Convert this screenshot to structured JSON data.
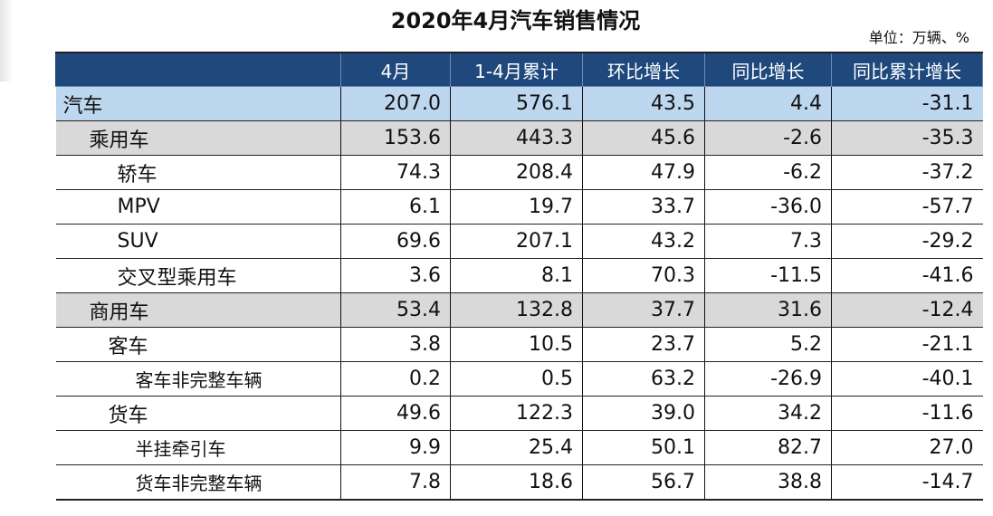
{
  "title": "2020年4月汽车销售情况",
  "unit": "单位：万辆、%",
  "columns": [
    "",
    "4月",
    "1-4月累计",
    "环比增长",
    "同比增长",
    "同比累计增长"
  ],
  "rows": [
    {
      "name": "汽车",
      "level": 0,
      "values": [
        "207.0",
        "576.1",
        "43.5",
        "4.4",
        "-31.1"
      ]
    },
    {
      "name": "乘用车",
      "level": 1,
      "values": [
        "153.6",
        "443.3",
        "45.6",
        "-2.6",
        "-35.3"
      ]
    },
    {
      "name": "轿车",
      "level": 2,
      "values": [
        "74.3",
        "208.4",
        "47.9",
        "-6.2",
        "-37.2"
      ]
    },
    {
      "name": "MPV",
      "level": 2,
      "values": [
        "6.1",
        "19.7",
        "33.7",
        "-36.0",
        "-57.7"
      ]
    },
    {
      "name": "SUV",
      "level": 2,
      "values": [
        "69.6",
        "207.1",
        "43.2",
        "7.3",
        "-29.2"
      ]
    },
    {
      "name": "交叉型乘用车",
      "level": 2,
      "values": [
        "3.6",
        "8.1",
        "70.3",
        "-11.5",
        "-41.6"
      ]
    },
    {
      "name": "商用车",
      "level": 1,
      "values": [
        "53.4",
        "132.8",
        "37.7",
        "31.6",
        "-12.4"
      ]
    },
    {
      "name": "客车",
      "level": 3,
      "values": [
        "3.8",
        "10.5",
        "23.7",
        "5.2",
        "-21.1"
      ]
    },
    {
      "name": "客车非完整车辆",
      "level": 4,
      "values": [
        "0.2",
        "0.5",
        "63.2",
        "-26.9",
        "-40.1"
      ]
    },
    {
      "name": "货车",
      "level": 3,
      "values": [
        "49.6",
        "122.3",
        "39.0",
        "34.2",
        "-11.6"
      ]
    },
    {
      "name": "半挂牵引车",
      "level": 4,
      "values": [
        "9.9",
        "25.4",
        "50.1",
        "82.7",
        "27.0"
      ]
    },
    {
      "name": "货车非完整车辆",
      "level": 4,
      "values": [
        "7.8",
        "18.6",
        "56.7",
        "38.8",
        "-14.7"
      ]
    }
  ],
  "colors": {
    "header": "#1f497d",
    "total_row": "#bdd7ee",
    "group_row": "#d9d9d9"
  }
}
